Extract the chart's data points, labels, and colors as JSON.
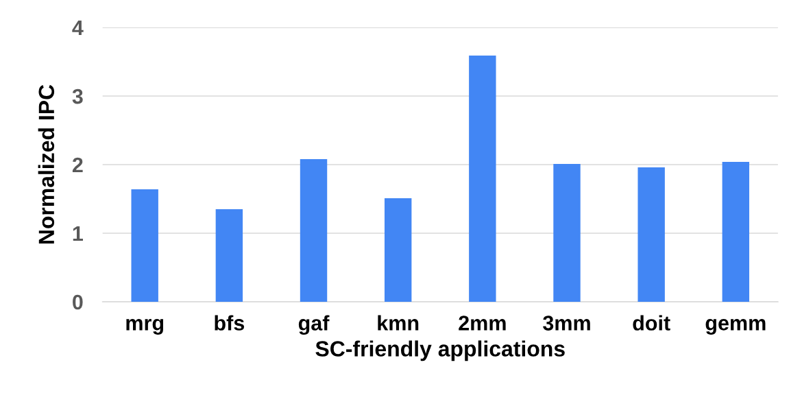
{
  "chart_data": {
    "type": "bar",
    "xlabel": "SC-friendly applications",
    "ylabel": "Normalized IPC",
    "categories": [
      "mrg",
      "bfs",
      "gaf",
      "kmn",
      "2mm",
      "3mm",
      "doit",
      "gemm"
    ],
    "values": [
      1.64,
      1.35,
      2.08,
      1.51,
      3.59,
      2.01,
      1.96,
      2.04
    ],
    "color": "#4286f4",
    "ylim": [
      0,
      4
    ],
    "yticks": [
      0,
      1,
      2,
      3,
      4
    ],
    "grid": "y",
    "legend": false
  }
}
